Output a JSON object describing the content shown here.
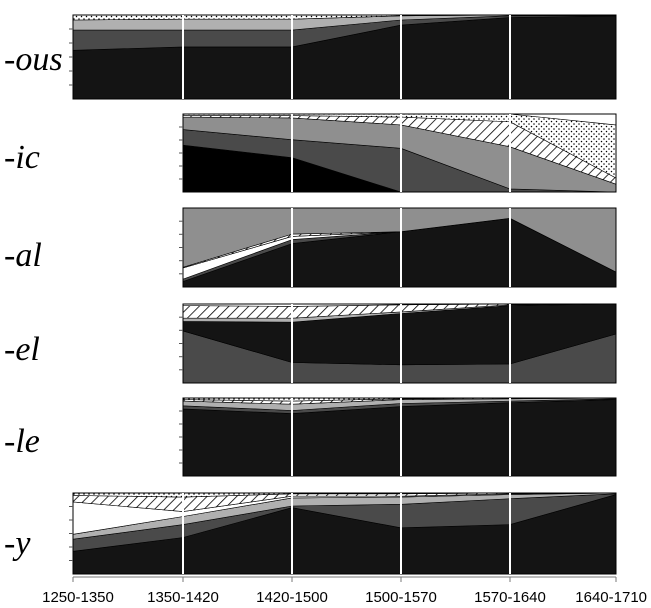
{
  "chart_data": {
    "type": "area",
    "stacked": "100%",
    "x": [
      "1250-1350",
      "1350-1420",
      "1420-1500",
      "1500-1570",
      "1570-1640",
      "1640-1710"
    ],
    "colors": {
      "black": "#141414",
      "deep": "#000000",
      "dark_gray": "#4a4a4a",
      "mid_gray": "#8f8f8f",
      "light_gray": "#b0b0b0",
      "white": "#ffffff"
    },
    "panels": [
      {
        "label": "-ous",
        "start_index": 0,
        "layers": [
          {
            "fill": "black",
            "values": [
              0.58,
              0.62,
              0.62,
              0.88,
              0.97,
              0.99
            ]
          },
          {
            "fill": "dark_gray",
            "values": [
              0.24,
              0.2,
              0.2,
              0.06,
              0.02,
              0.005
            ]
          },
          {
            "fill": "light_gray",
            "values": [
              0.12,
              0.13,
              0.13,
              0.05,
              0.01,
              0.005
            ]
          },
          {
            "fill": "dots",
            "values": [
              0.06,
              0.05,
              0.05,
              0.01,
              0.0,
              0.0
            ]
          }
        ]
      },
      {
        "label": "-ic",
        "start_index": 1,
        "layers": [
          {
            "fill": "deep",
            "values": [
              0.6,
              0.44,
              0.0,
              0.0,
              0.0
            ]
          },
          {
            "fill": "dark_gray",
            "values": [
              0.2,
              0.23,
              0.56,
              0.04,
              0.0
            ]
          },
          {
            "fill": "mid_gray",
            "values": [
              0.16,
              0.28,
              0.3,
              0.54,
              0.1
            ]
          },
          {
            "fill": "hatch",
            "values": [
              0.02,
              0.03,
              0.1,
              0.32,
              0.08
            ]
          },
          {
            "fill": "dots",
            "values": [
              0.02,
              0.02,
              0.04,
              0.1,
              0.68
            ]
          },
          {
            "fill": "white",
            "values": [
              0.0,
              0.0,
              0.0,
              0.0,
              0.14
            ]
          }
        ]
      },
      {
        "label": "-al",
        "start_index": 1,
        "layers": [
          {
            "fill": "black",
            "values": [
              0.07,
              0.55,
              0.7,
              0.87,
              0.19
            ]
          },
          {
            "fill": "dark_gray",
            "values": [
              0.03,
              0.05,
              0.0,
              0.0,
              0.0
            ]
          },
          {
            "fill": "white",
            "values": [
              0.14,
              0.04,
              0.0,
              0.0,
              0.0
            ]
          },
          {
            "fill": "hatch",
            "values": [
              0.01,
              0.03,
              0.0,
              0.0,
              0.0
            ]
          },
          {
            "fill": "mid_gray",
            "values": [
              0.75,
              0.33,
              0.3,
              0.13,
              0.81
            ]
          }
        ]
      },
      {
        "label": "-el",
        "start_index": 1,
        "layers": [
          {
            "fill": "dark_gray",
            "values": [
              0.66,
              0.26,
              0.23,
              0.24,
              0.62
            ]
          },
          {
            "fill": "black",
            "values": [
              0.12,
              0.51,
              0.65,
              0.74,
              0.38
            ]
          },
          {
            "fill": "light_gray",
            "values": [
              0.04,
              0.05,
              0.02,
              0.01,
              0.0
            ]
          },
          {
            "fill": "hatch",
            "values": [
              0.16,
              0.15,
              0.09,
              0.01,
              0.0
            ]
          },
          {
            "fill": "white",
            "values": [
              0.02,
              0.03,
              0.01,
              0.0,
              0.0
            ]
          }
        ]
      },
      {
        "label": "-le",
        "start_index": 1,
        "layers": [
          {
            "fill": "black",
            "values": [
              0.86,
              0.8,
              0.89,
              0.94,
              0.98
            ]
          },
          {
            "fill": "dark_gray",
            "values": [
              0.04,
              0.04,
              0.04,
              0.02,
              0.01
            ]
          },
          {
            "fill": "light_gray",
            "values": [
              0.06,
              0.08,
              0.05,
              0.03,
              0.01
            ]
          },
          {
            "fill": "hatch",
            "values": [
              0.02,
              0.04,
              0.01,
              0.01,
              0.0
            ]
          },
          {
            "fill": "dots",
            "values": [
              0.02,
              0.04,
              0.01,
              0.0,
              0.0
            ]
          }
        ]
      },
      {
        "label": "-y",
        "start_index": 0,
        "layers": [
          {
            "fill": "black",
            "values": [
              0.28,
              0.45,
              0.82,
              0.57,
              0.61,
              0.98
            ]
          },
          {
            "fill": "dark_gray",
            "values": [
              0.15,
              0.16,
              0.02,
              0.29,
              0.32,
              0.01
            ]
          },
          {
            "fill": "light_gray",
            "values": [
              0.06,
              0.1,
              0.1,
              0.09,
              0.05,
              0.01
            ]
          },
          {
            "fill": "white",
            "values": [
              0.4,
              0.06,
              0.02,
              0.01,
              0.01,
              0.0
            ]
          },
          {
            "fill": "hatch",
            "values": [
              0.08,
              0.18,
              0.03,
              0.03,
              0.01,
              0.0
            ]
          },
          {
            "fill": "dots",
            "values": [
              0.03,
              0.05,
              0.01,
              0.01,
              0.0,
              0.0
            ]
          }
        ]
      }
    ]
  }
}
